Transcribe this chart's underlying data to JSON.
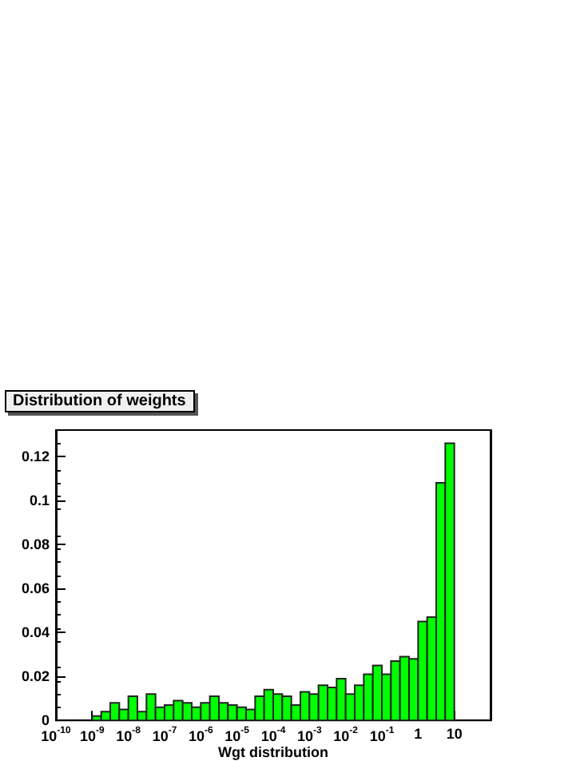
{
  "chart_data": {
    "type": "histogram",
    "title": "Distribution of weights",
    "xlabel": "Wgt distribution",
    "log": "x",
    "color": "#00ff00",
    "bins": [
      1e-10,
      1.778e-10,
      3.162e-10,
      5.623e-10,
      1e-09,
      1.778e-09,
      3.162e-09,
      5.623e-09,
      1e-08,
      1.778e-08,
      3.162e-08,
      5.623e-08,
      1e-07,
      1.778e-07,
      3.162e-07,
      5.623e-07,
      1e-06,
      1.778e-06,
      3.162e-06,
      5.623e-06,
      1e-05,
      1.778e-05,
      3.162e-05,
      5.623e-05,
      0.0001,
      0.0001778,
      0.0003162,
      0.0005623,
      0.001,
      0.001778,
      0.003162,
      0.005623,
      0.01,
      0.01778,
      0.03162,
      0.05623,
      0.1,
      0.1778,
      0.3162,
      0.5623,
      1,
      1.778,
      3.162,
      5.623,
      10
    ],
    "values": [
      0,
      0,
      0,
      0,
      0.002,
      0.004,
      0.008,
      0.005,
      0.011,
      0.004,
      0.012,
      0.006,
      0.007,
      0.009,
      0.008,
      0.006,
      0.008,
      0.011,
      0.008,
      0.007,
      0.006,
      0.005,
      0.011,
      0.014,
      0.012,
      0.011,
      0.007,
      0.013,
      0.012,
      0.016,
      0.015,
      0.019,
      0.012,
      0.016,
      0.021,
      0.025,
      0.021,
      0.027,
      0.029,
      0.028,
      0.045,
      0.047,
      0.108,
      0.126
    ],
    "xlim": [
      1e-10,
      100
    ],
    "xticks": [
      {
        "value": 1e-10,
        "label": "10$^{-10}$"
      },
      {
        "value": 1e-09,
        "label": "10$^{-9}$"
      },
      {
        "value": 1e-08,
        "label": "10$^{-8}$"
      },
      {
        "value": 1e-07,
        "label": "10$^{-7}$"
      },
      {
        "value": 1e-06,
        "label": "10$^{-6}$"
      },
      {
        "value": 1e-05,
        "label": "10$^{-5}$"
      },
      {
        "value": 0.0001,
        "label": "10$^{-4}$"
      },
      {
        "value": 0.001,
        "label": "10$^{-3}$"
      },
      {
        "value": 0.01,
        "label": "10$^{-2}$"
      },
      {
        "value": 0.1,
        "label": "10$^{-1}$"
      },
      1,
      10,
      {
        "value": 100,
        "label": null
      }
    ],
    "ylim": [
      0,
      0.132
    ],
    "yticks": [
      0,
      0.02,
      0.04,
      0.06,
      0.08,
      0.1,
      0.12
    ],
    "grid": false
  }
}
